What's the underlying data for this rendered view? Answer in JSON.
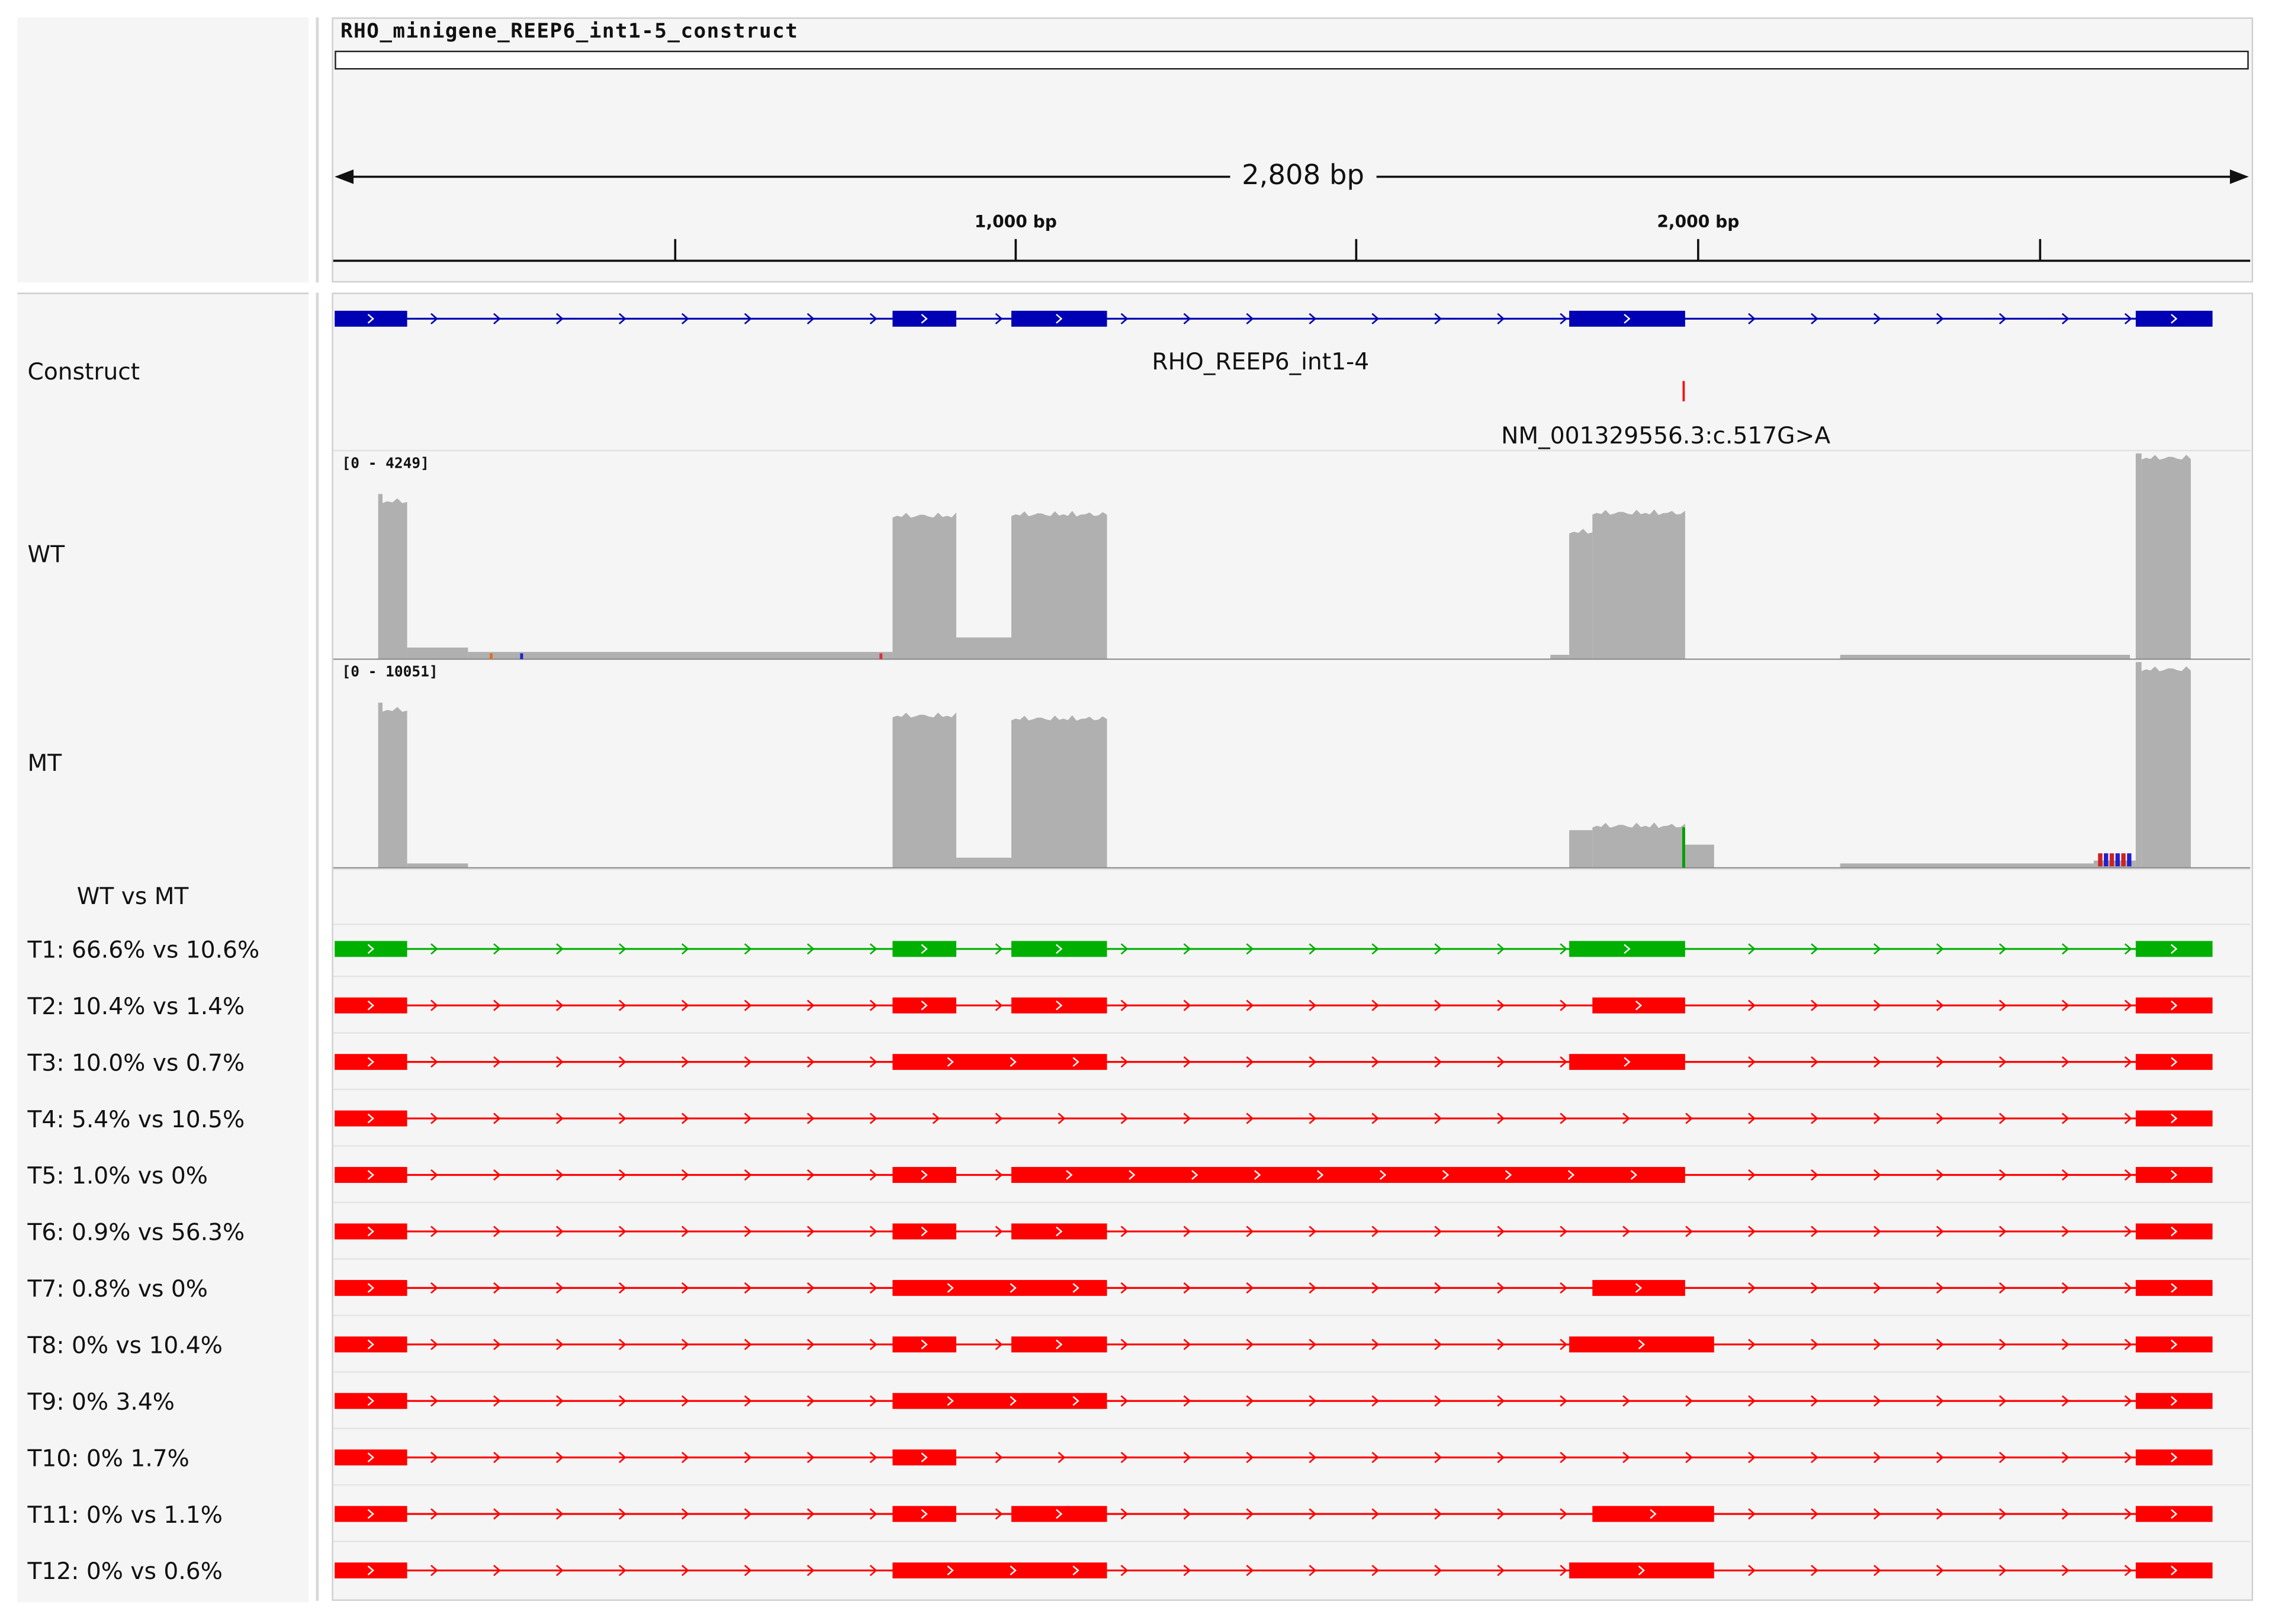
{
  "chromosome": {
    "name": "RHO_minigene_REEP6_int1-5_construct",
    "span_label": "2,808 bp",
    "tick_labels": [
      "1,000 bp",
      "2,000 bp"
    ]
  },
  "tracks": {
    "construct": {
      "label": "Construct",
      "gene_name": "RHO_REEP6_int1-4",
      "variant_name": "NM_001329556.3:c.517G>A"
    },
    "wt": {
      "label": "WT",
      "range": "[0 - 4249]"
    },
    "mt": {
      "label": "MT",
      "range": "[0 - 10051]"
    },
    "comparison": {
      "label": "WT vs MT"
    }
  },
  "transcripts": [
    {
      "label": "T1: 66.6% vs 10.6%",
      "color": "#00b000",
      "exons": [
        1,
        2,
        3,
        4,
        6
      ]
    },
    {
      "label": "T2: 10.4% vs 1.4%",
      "color": "#ff0000",
      "exons": [
        1,
        2,
        3,
        "4s",
        6
      ]
    },
    {
      "label": "T3: 10.0% vs 0.7%",
      "color": "#ff0000",
      "exons": [
        1,
        "2-3",
        4,
        6
      ]
    },
    {
      "label": "T4: 5.4% vs 10.5%",
      "color": "#ff0000",
      "exons": [
        1,
        6
      ]
    },
    {
      "label": "T5: 1.0% vs 0%",
      "color": "#ff0000",
      "exons": [
        1,
        2,
        "3-4",
        6
      ]
    },
    {
      "label": "T6: 0.9% vs 56.3%",
      "color": "#ff0000",
      "exons": [
        1,
        2,
        3,
        6
      ]
    },
    {
      "label": "T7: 0.8% vs 0%",
      "color": "#ff0000",
      "exons": [
        1,
        "2-3",
        "4s",
        6
      ]
    },
    {
      "label": "T8: 0% vs 10.4%",
      "color": "#ff0000",
      "exons": [
        1,
        2,
        3,
        "4x",
        6
      ]
    },
    {
      "label": "T9: 0% 3.4%",
      "color": "#ff0000",
      "exons": [
        1,
        "2-3",
        6
      ]
    },
    {
      "label": "T10: 0% 1.7%",
      "color": "#ff0000",
      "exons": [
        1,
        2,
        6
      ]
    },
    {
      "label": "T11: 0% vs 1.1%",
      "color": "#ff0000",
      "exons": [
        1,
        2,
        3,
        "4sx",
        6
      ]
    },
    {
      "label": "T12: 0% vs 0.6%",
      "color": "#ff0000",
      "exons": [
        1,
        "2-3",
        "4x",
        6
      ]
    }
  ],
  "colors": {
    "construct": "#0000b4",
    "coverage": "#b0b0b0",
    "included": "#00b000",
    "excluded": "#ff0000",
    "variant": "#ff0000"
  }
}
